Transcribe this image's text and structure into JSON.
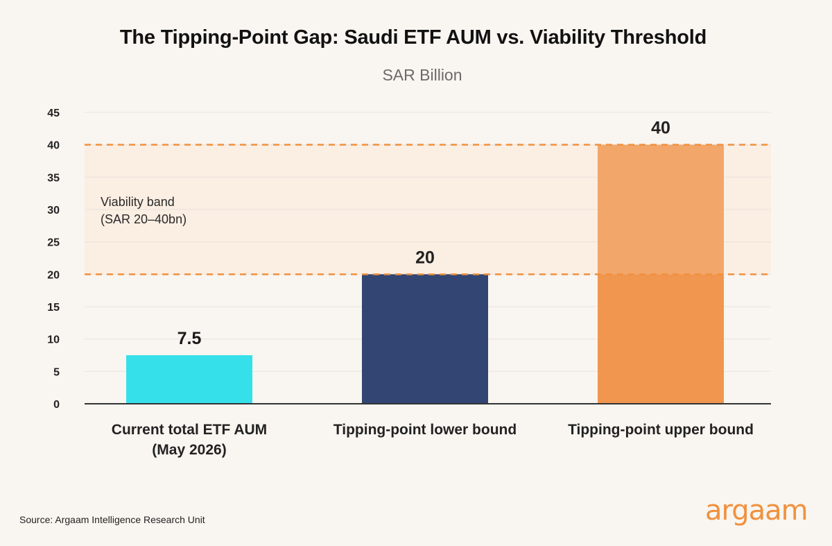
{
  "header": {
    "title": "The Tipping-Point Gap: Saudi ETF AUM vs. Viability Threshold",
    "subtitle": "SAR Billion"
  },
  "footer": {
    "source": "Source: Argaam Intelligence Research Unit",
    "logo_text": "argaam"
  },
  "colors": {
    "background": "#f9f5f0",
    "band_fill": "#fbeee2",
    "band_line": "#f0913e",
    "grid": "#e9e3dc",
    "axis": "#333333",
    "bar_current": "#36e0ea",
    "bar_lower": "#324573",
    "bar_upper_base": "#f0964f",
    "bar_upper_top": "#f2a66a",
    "brand": "#f0913e"
  },
  "chart_data": {
    "type": "bar",
    "title": "The Tipping-Point Gap: Saudi ETF AUM vs. Viability Threshold",
    "subtitle": "SAR Billion",
    "categories": [
      [
        "Current total ETF AUM",
        "(May 2026)"
      ],
      [
        "Tipping-point lower bound"
      ],
      [
        "Tipping-point upper bound"
      ]
    ],
    "values": [
      7.5,
      20,
      40
    ],
    "data_labels": [
      "7.5",
      "20",
      "40"
    ],
    "ylim": [
      0,
      45
    ],
    "yticks": [
      0,
      5,
      10,
      15,
      20,
      25,
      30,
      35,
      40,
      45
    ],
    "grid": true,
    "band": {
      "from": 20,
      "to": 40,
      "label_lines": [
        "Viability band",
        "(SAR 20–40bn)"
      ]
    }
  }
}
